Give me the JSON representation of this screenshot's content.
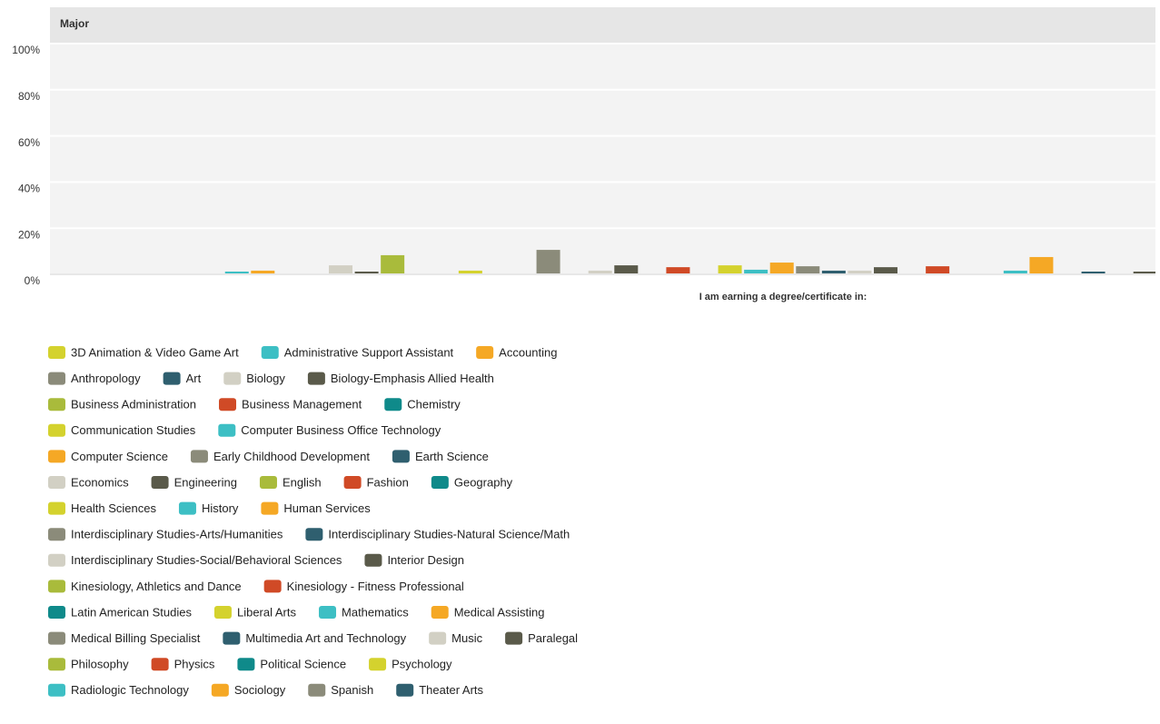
{
  "chart_data": {
    "type": "bar",
    "title": "Major",
    "xlabel": "I am earning a degree/certificate in:",
    "categories": [
      "I am earning a degree/certificate in:"
    ],
    "ylim": [
      0,
      100
    ],
    "yticks": [
      {
        "value": 0,
        "label": "0%"
      },
      {
        "value": 20,
        "label": "20%"
      },
      {
        "value": 40,
        "label": "40%"
      },
      {
        "value": 60,
        "label": "60%"
      },
      {
        "value": 80,
        "label": "80%"
      },
      {
        "value": 100,
        "label": "100%"
      }
    ],
    "grid": true,
    "legend": "bottom",
    "series": [
      {
        "name": "3D Animation & Video Game Art",
        "color": "#d4d22e",
        "values": [
          0
        ]
      },
      {
        "name": "Administrative Support Assistant",
        "color": "#3dbfc4",
        "values": [
          1.2
        ]
      },
      {
        "name": "Accounting",
        "color": "#f5a825",
        "values": [
          1.6
        ]
      },
      {
        "name": "Anthropology",
        "color": "#8b8b7a",
        "values": [
          0
        ]
      },
      {
        "name": "Art",
        "color": "#2f5f6f",
        "values": [
          0
        ]
      },
      {
        "name": "Biology",
        "color": "#d2d0c4",
        "values": [
          3.9
        ]
      },
      {
        "name": "Biology-Emphasis Allied Health",
        "color": "#5a5a4a",
        "values": [
          1.2
        ]
      },
      {
        "name": "Business Administration",
        "color": "#a9bb3b",
        "values": [
          8.3
        ]
      },
      {
        "name": "Business Management",
        "color": "#d04a26",
        "values": [
          0
        ]
      },
      {
        "name": "Chemistry",
        "color": "#0f8a8a",
        "values": [
          0
        ]
      },
      {
        "name": "Communication Studies",
        "color": "#d4d22e",
        "values": [
          1.6
        ]
      },
      {
        "name": "Computer Business Office Technology",
        "color": "#3dbfc4",
        "values": [
          0
        ]
      },
      {
        "name": "Computer Science",
        "color": "#f5a825",
        "values": [
          0
        ]
      },
      {
        "name": "Early Childhood Development",
        "color": "#8b8b7a",
        "values": [
          10.6
        ]
      },
      {
        "name": "Earth Science",
        "color": "#2f5f6f",
        "values": [
          0
        ]
      },
      {
        "name": "Economics",
        "color": "#d2d0c4",
        "values": [
          1.6
        ]
      },
      {
        "name": "Engineering",
        "color": "#5a5a4a",
        "values": [
          3.9
        ]
      },
      {
        "name": "English",
        "color": "#a9bb3b",
        "values": [
          0
        ]
      },
      {
        "name": "Fashion",
        "color": "#d04a26",
        "values": [
          3.1
        ]
      },
      {
        "name": "Geography",
        "color": "#0f8a8a",
        "values": [
          0
        ]
      },
      {
        "name": "Health Sciences",
        "color": "#d4d22e",
        "values": [
          3.9
        ]
      },
      {
        "name": "History",
        "color": "#3dbfc4",
        "values": [
          2.0
        ]
      },
      {
        "name": "Human Services",
        "color": "#f5a825",
        "values": [
          5.1
        ]
      },
      {
        "name": "Interdisciplinary Studies-Arts/Humanities",
        "color": "#8b8b7a",
        "values": [
          3.5
        ]
      },
      {
        "name": "Interdisciplinary Studies-Natural Science/Math",
        "color": "#2f5f6f",
        "values": [
          1.6
        ]
      },
      {
        "name": "Interdisciplinary Studies-Social/Behavioral Sciences",
        "color": "#d2d0c4",
        "values": [
          1.6
        ]
      },
      {
        "name": "Interior Design",
        "color": "#5a5a4a",
        "values": [
          3.1
        ]
      },
      {
        "name": "Kinesiology, Athletics and Dance",
        "color": "#a9bb3b",
        "values": [
          0
        ]
      },
      {
        "name": "Kinesiology - Fitness Professional",
        "color": "#d04a26",
        "values": [
          3.5
        ]
      },
      {
        "name": "Latin American Studies",
        "color": "#0f8a8a",
        "values": [
          0
        ]
      },
      {
        "name": "Liberal Arts",
        "color": "#d4d22e",
        "values": [
          0
        ]
      },
      {
        "name": "Mathematics",
        "color": "#3dbfc4",
        "values": [
          1.6
        ]
      },
      {
        "name": "Medical Assisting",
        "color": "#f5a825",
        "values": [
          7.5
        ]
      },
      {
        "name": "Medical Billing Specialist",
        "color": "#8b8b7a",
        "values": [
          0
        ]
      },
      {
        "name": "Multimedia Art and Technology",
        "color": "#2f5f6f",
        "values": [
          1.2
        ]
      },
      {
        "name": "Music",
        "color": "#d2d0c4",
        "values": [
          0
        ]
      },
      {
        "name": "Paralegal",
        "color": "#5a5a4a",
        "values": [
          1.2
        ]
      },
      {
        "name": "Philosophy",
        "color": "#a9bb3b",
        "values": [
          null
        ]
      },
      {
        "name": "Physics",
        "color": "#d04a26",
        "values": [
          null
        ]
      },
      {
        "name": "Political Science",
        "color": "#0f8a8a",
        "values": [
          null
        ]
      },
      {
        "name": "Psychology",
        "color": "#d4d22e",
        "values": [
          null
        ]
      },
      {
        "name": "Radiologic Technology",
        "color": "#3dbfc4",
        "values": [
          null
        ]
      },
      {
        "name": "Sociology",
        "color": "#f5a825",
        "values": [
          null
        ]
      },
      {
        "name": "Spanish",
        "color": "#8b8b7a",
        "values": [
          null
        ]
      },
      {
        "name": "Theater Arts",
        "color": "#2f5f6f",
        "values": [
          null
        ]
      }
    ]
  }
}
